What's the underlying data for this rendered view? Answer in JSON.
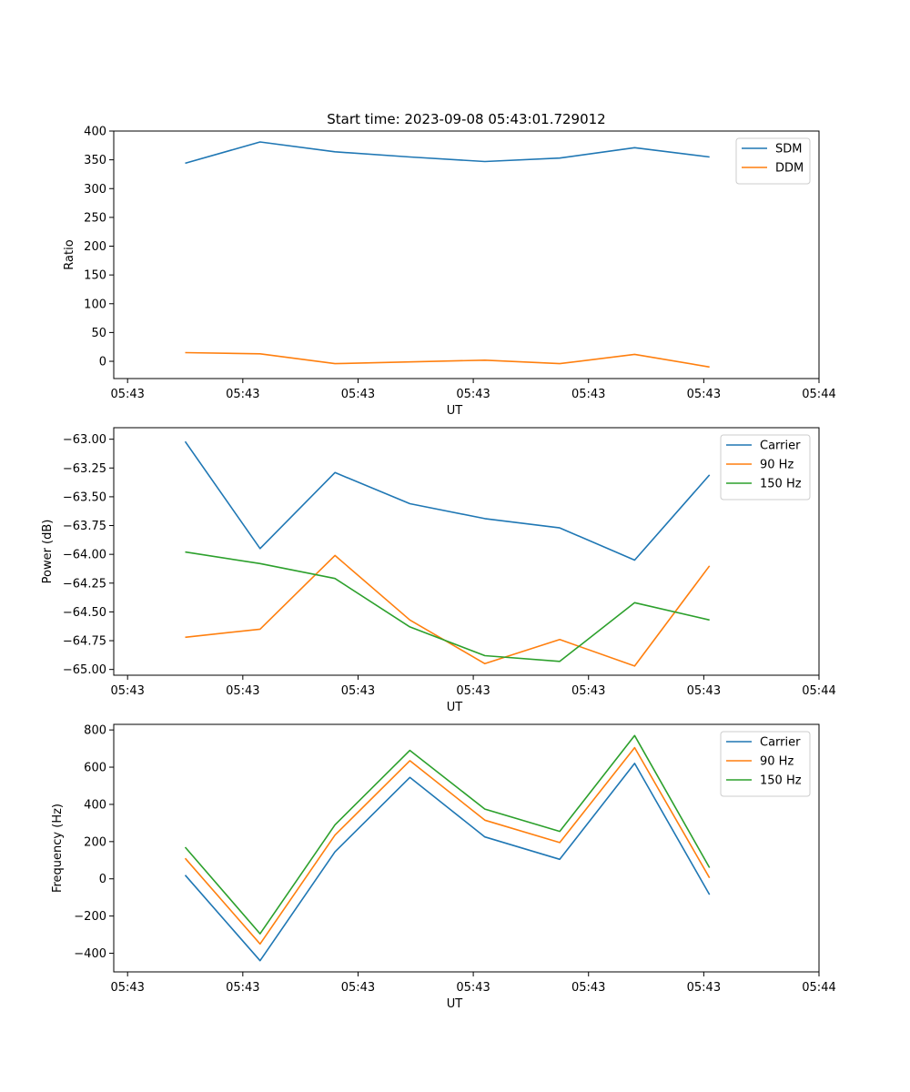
{
  "chart_data": [
    {
      "type": "line",
      "title": "Start time: 2023-09-08 05:43:01.729012",
      "xlabel": "UT",
      "ylabel": "Ratio",
      "x_ticks": [
        "05:43",
        "05:43",
        "05:43",
        "05:43",
        "05:43",
        "05:43",
        "05:44"
      ],
      "x_tick_values": [
        0,
        1,
        2,
        3,
        4,
        5,
        6
      ],
      "xlim": [
        -0.12,
        6.0
      ],
      "x": [
        0.5,
        1.15,
        1.8,
        2.45,
        3.1,
        3.75,
        4.4,
        5.05
      ],
      "ylim": [
        -30,
        400
      ],
      "y_ticks": [
        0,
        50,
        100,
        150,
        200,
        250,
        300,
        350,
        400
      ],
      "legend": "top-right",
      "series": [
        {
          "name": "SDM",
          "color": "#1f77b4",
          "values": [
            344,
            381,
            364,
            355,
            347,
            353,
            371,
            355
          ]
        },
        {
          "name": "DDM",
          "color": "#ff7f0e",
          "values": [
            15,
            13,
            -4,
            -1,
            2,
            -4,
            12,
            -10
          ]
        }
      ]
    },
    {
      "type": "line",
      "title": "",
      "xlabel": "UT",
      "ylabel": "Power (dB)",
      "x_ticks": [
        "05:43",
        "05:43",
        "05:43",
        "05:43",
        "05:43",
        "05:43",
        "05:44"
      ],
      "x_tick_values": [
        0,
        1,
        2,
        3,
        4,
        5,
        6
      ],
      "xlim": [
        -0.12,
        6.0
      ],
      "x": [
        0.5,
        1.15,
        1.8,
        2.45,
        3.1,
        3.75,
        4.4,
        5.05
      ],
      "ylim": [
        -65.05,
        -62.9
      ],
      "y_ticks": [
        -65.0,
        -64.75,
        -64.5,
        -64.25,
        -64.0,
        -63.75,
        -63.5,
        -63.25,
        -63.0
      ],
      "y_tick_labels": [
        "−65.00",
        "−64.75",
        "−64.50",
        "−64.25",
        "−64.00",
        "−63.75",
        "−63.50",
        "−63.25",
        "−63.00"
      ],
      "legend": "top-right",
      "series": [
        {
          "name": "Carrier",
          "color": "#1f77b4",
          "values": [
            -63.02,
            -63.95,
            -63.29,
            -63.56,
            -63.69,
            -63.77,
            -64.05,
            -63.31
          ]
        },
        {
          "name": "90 Hz",
          "color": "#ff7f0e",
          "values": [
            -64.72,
            -64.65,
            -64.01,
            -64.57,
            -64.95,
            -64.74,
            -64.97,
            -64.1
          ]
        },
        {
          "name": "150 Hz",
          "color": "#2ca02c",
          "values": [
            -63.98,
            -64.08,
            -64.21,
            -64.63,
            -64.88,
            -64.93,
            -64.42,
            -64.57
          ]
        }
      ]
    },
    {
      "type": "line",
      "title": "",
      "xlabel": "UT",
      "ylabel": "Frequency (Hz)",
      "x_ticks": [
        "05:43",
        "05:43",
        "05:43",
        "05:43",
        "05:43",
        "05:43",
        "05:44"
      ],
      "x_tick_values": [
        0,
        1,
        2,
        3,
        4,
        5,
        6
      ],
      "xlim": [
        -0.12,
        6.0
      ],
      "x": [
        0.5,
        1.15,
        1.8,
        2.45,
        3.1,
        3.75,
        4.4,
        5.05
      ],
      "ylim": [
        -500,
        830
      ],
      "y_ticks": [
        -400,
        -200,
        0,
        200,
        400,
        600,
        800
      ],
      "y_tick_labels": [
        "−400",
        "−200",
        "0",
        "200",
        "400",
        "600",
        "800"
      ],
      "legend": "top-right",
      "series": [
        {
          "name": "Carrier",
          "color": "#1f77b4",
          "values": [
            20,
            -440,
            145,
            545,
            225,
            105,
            620,
            -85
          ]
        },
        {
          "name": "90 Hz",
          "color": "#ff7f0e",
          "values": [
            110,
            -350,
            235,
            635,
            315,
            195,
            705,
            5
          ]
        },
        {
          "name": "150 Hz",
          "color": "#2ca02c",
          "values": [
            170,
            -295,
            290,
            690,
            375,
            255,
            770,
            60
          ]
        }
      ]
    }
  ]
}
